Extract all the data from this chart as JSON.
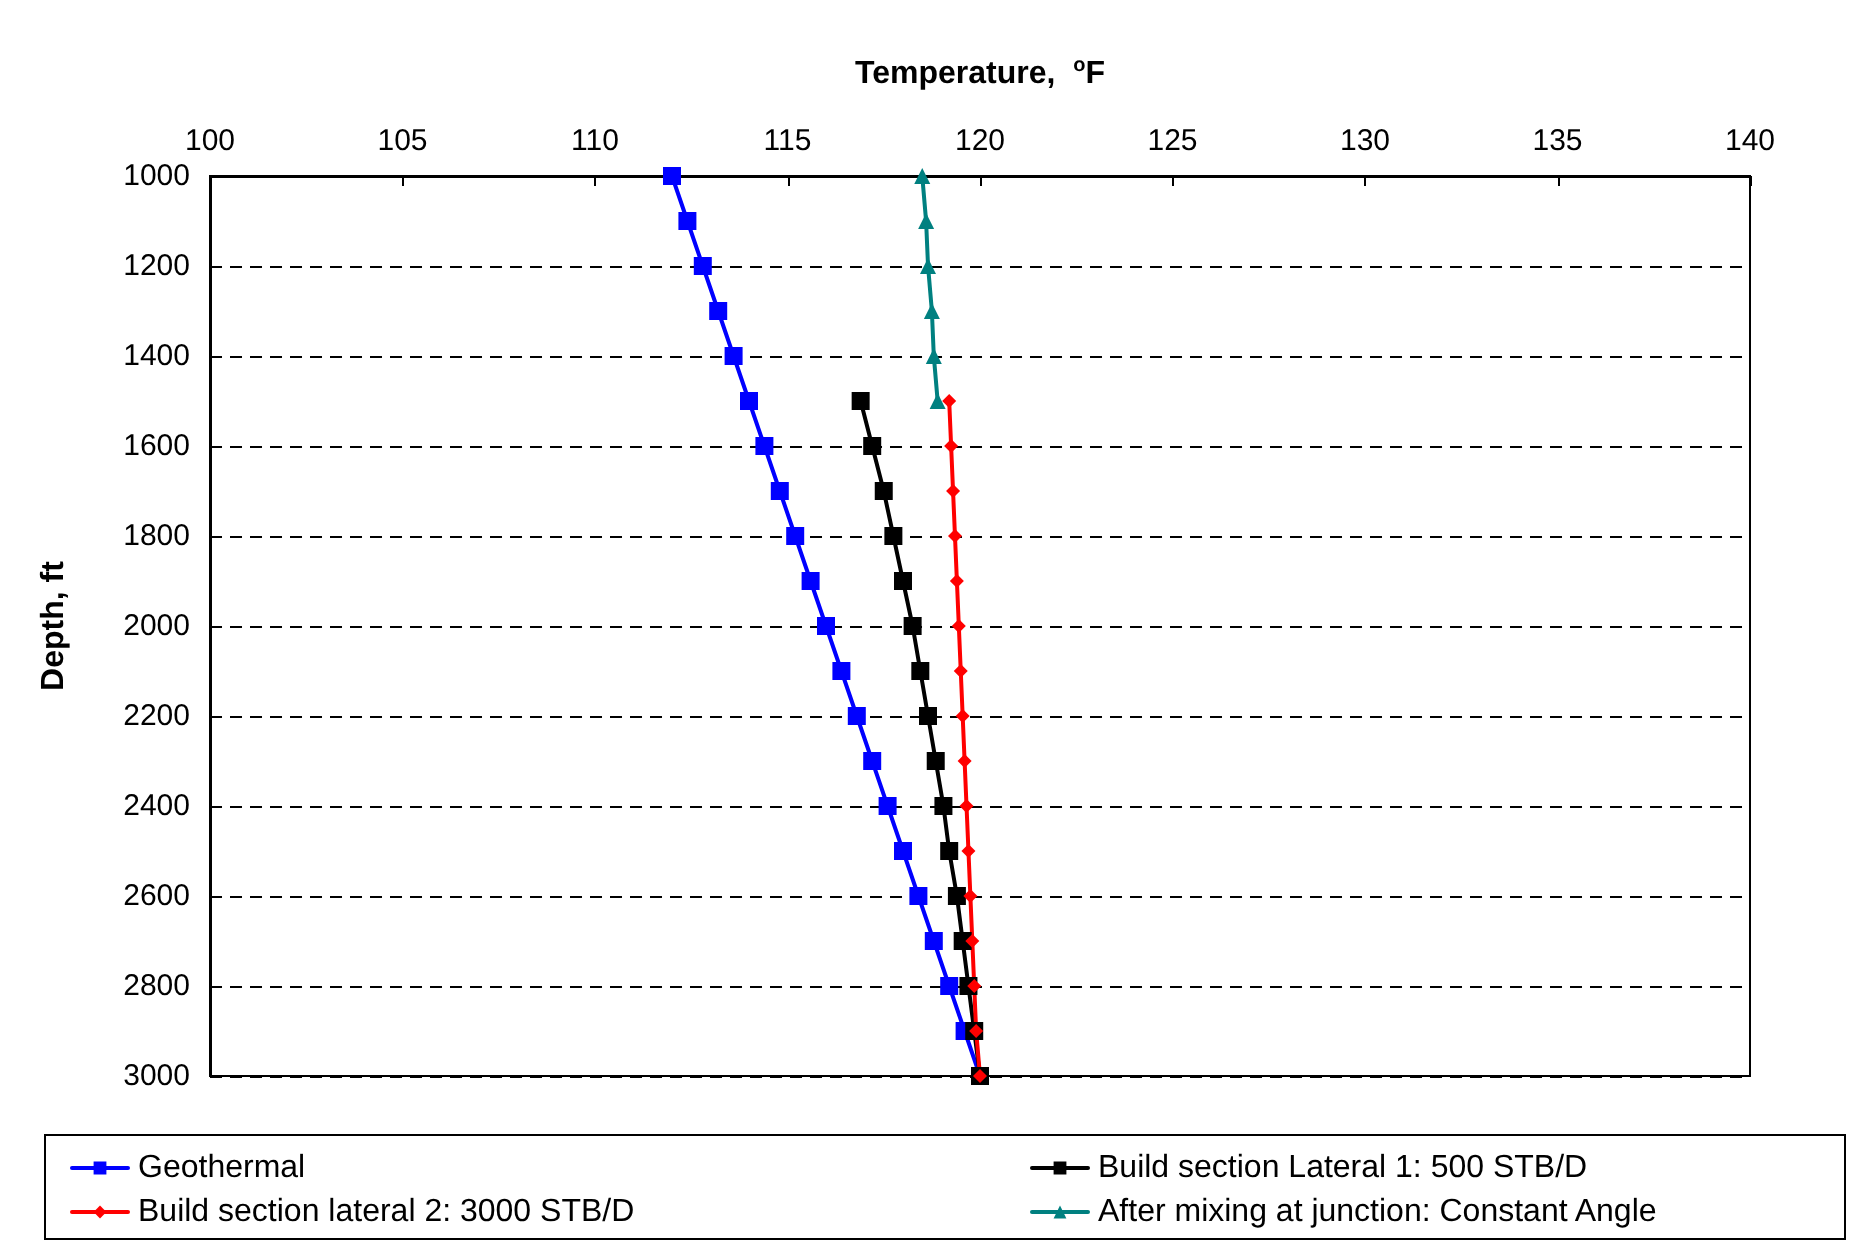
{
  "chart_data": {
    "type": "line",
    "xlabel": "Temperature,  $^{o}$F",
    "ylabel": "Depth, ft",
    "xlim": [
      100,
      140
    ],
    "xticks": [
      100,
      105,
      110,
      115,
      120,
      125,
      130,
      135,
      140
    ],
    "ylim": [
      3000,
      1000
    ],
    "yticks": [
      1000,
      1200,
      1400,
      1600,
      1800,
      2000,
      2200,
      2400,
      2600,
      2800,
      3000
    ],
    "grid": "y",
    "legend": "bottom",
    "line_style": "solid",
    "series": [
      {
        "name": "Geothermal",
        "color": "#0000ff",
        "marker": "square",
        "x": [
          112,
          112.4,
          112.8,
          113.2,
          113.6,
          114,
          114.4,
          114.8,
          115.2,
          115.6,
          116,
          116.4,
          116.8,
          117.2,
          117.6,
          118,
          118.4,
          118.8,
          119.2,
          119.6,
          120
        ],
        "values": [
          1000,
          1100,
          1200,
          1300,
          1400,
          1500,
          1600,
          1700,
          1800,
          1900,
          2000,
          2100,
          2200,
          2300,
          2400,
          2500,
          2600,
          2700,
          2800,
          2900,
          3000
        ]
      },
      {
        "name": "Build section Lateral 1: 500 STB/D",
        "color": "#000000",
        "marker": "square",
        "x": [
          116.9,
          117.2,
          117.5,
          117.75,
          118,
          118.25,
          118.45,
          118.65,
          118.85,
          119.05,
          119.2,
          119.4,
          119.55,
          119.7,
          119.85,
          120
        ],
        "values": [
          1500,
          1600,
          1700,
          1800,
          1900,
          2000,
          2100,
          2200,
          2300,
          2400,
          2500,
          2600,
          2700,
          2800,
          2900,
          3000
        ]
      },
      {
        "name": "Build section lateral 2: 3000 STB/D",
        "color": "#ff0000",
        "marker": "diamond",
        "x": [
          119.2,
          119.25,
          119.3,
          119.35,
          119.4,
          119.45,
          119.5,
          119.55,
          119.6,
          119.65,
          119.7,
          119.75,
          119.8,
          119.85,
          119.9,
          120
        ],
        "values": [
          1500,
          1600,
          1700,
          1800,
          1900,
          2000,
          2100,
          2200,
          2300,
          2400,
          2500,
          2600,
          2700,
          2800,
          2900,
          3000
        ]
      },
      {
        "name": "After mixing at junction: Constant Angle",
        "color": "#008080",
        "marker": "triangle",
        "x": [
          118.5,
          118.6,
          118.65,
          118.75,
          118.8,
          118.9
        ],
        "values": [
          1000,
          1100,
          1200,
          1300,
          1400,
          1500
        ]
      }
    ]
  }
}
